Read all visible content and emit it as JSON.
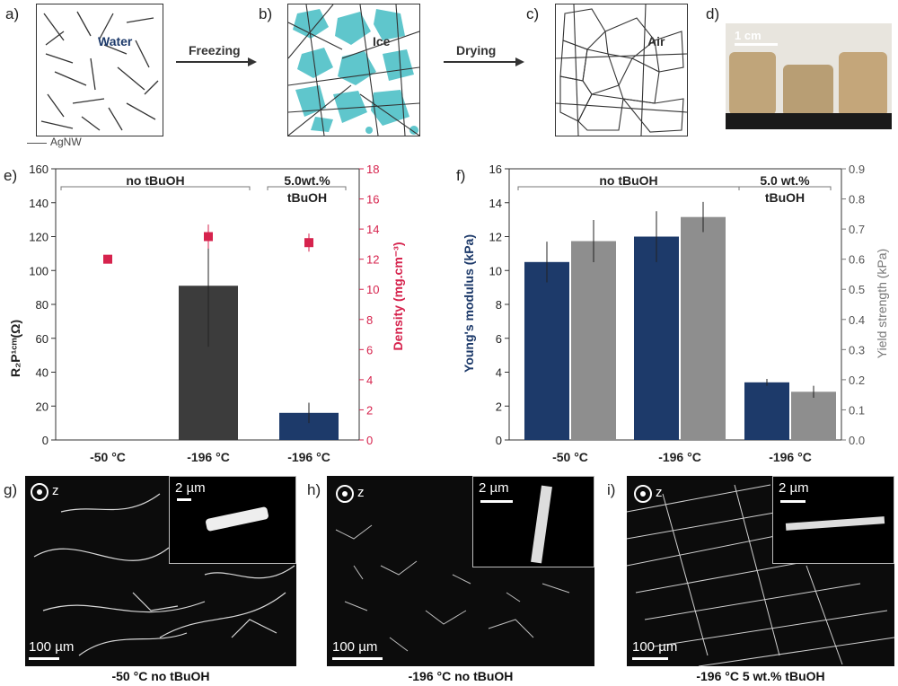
{
  "panel_labels": {
    "a": "a)",
    "b": "b)",
    "c": "c)",
    "d": "d)",
    "e": "e)",
    "f": "f)",
    "g": "g)",
    "h": "h)",
    "i": "i)"
  },
  "schematic": {
    "water": "Water",
    "ice": "Ice",
    "air": "Air",
    "freezing": "Freezing",
    "drying": "Drying",
    "legend": "AgNW"
  },
  "photo": {
    "scale": "1 cm"
  },
  "colors": {
    "navy": "#1d3a6a",
    "gray": "#8e8e8e",
    "dark": "#3c3c3c",
    "red": "#d6234d",
    "teal": "#5fc6cc"
  },
  "chart_e": {
    "group_label_1": "no tBuOH",
    "group_label_2_line1": "5.0wt.%",
    "group_label_2_line2": "tBuOH",
    "ylabel_left": "R₂P¹ᶜᵐ(Ω)",
    "ylabel_right": "Density (mg.cm⁻³)"
  },
  "chart_f": {
    "group_label_1": "no tBuOH",
    "group_label_2_line1": "5.0 wt.%",
    "group_label_2_line2": "tBuOH",
    "ylabel_left": "Young's modulus (kPa)",
    "ylabel_right": "Yield strength (kPa)"
  },
  "chart_data": [
    {
      "type": "bar",
      "categories": [
        "-50 °C",
        "-196 °C",
        "-196 °C"
      ],
      "series": [
        {
          "name": "R2P",
          "values": [
            0,
            91,
            16
          ],
          "errors": [
            0,
            36,
            6
          ],
          "colors": [
            "#3c3c3c",
            "#3c3c3c",
            "#1d3a6a"
          ]
        },
        {
          "name": "Density",
          "type": "scatter",
          "values": [
            12,
            13.5,
            13.1
          ],
          "errors": [
            0.2,
            0.8,
            0.6
          ]
        }
      ],
      "ylim_left": [
        0,
        160
      ],
      "yticks_left": [
        0,
        20,
        40,
        60,
        80,
        100,
        120,
        140,
        160
      ],
      "ylim_right": [
        0,
        18
      ],
      "yticks_right": [
        0,
        2,
        4,
        6,
        8,
        10,
        12,
        14,
        16,
        18
      ]
    },
    {
      "type": "bar",
      "categories": [
        "-50 °C",
        "-196 °C",
        "-196 °C"
      ],
      "series": [
        {
          "name": "Young's modulus",
          "values": [
            10.5,
            12,
            3.4
          ],
          "errors": [
            1.2,
            1.5,
            0.2
          ]
        },
        {
          "name": "Yield strength",
          "values": [
            0.66,
            0.74,
            0.16
          ],
          "errors": [
            0.07,
            0.05,
            0.02
          ]
        }
      ],
      "ylim_left": [
        0,
        16
      ],
      "yticks_left": [
        0,
        2,
        4,
        6,
        8,
        10,
        12,
        14,
        16
      ],
      "ylim_right": [
        0,
        0.9
      ],
      "yticks_right": [
        "0.0",
        "0.1",
        "0.2",
        "0.3",
        "0.4",
        "0.5",
        "0.6",
        "0.7",
        "0.8",
        "0.9"
      ]
    }
  ],
  "micrographs": [
    {
      "scale_main": "100 µm",
      "scale_inset": "2 µm",
      "axis": "z",
      "caption": "-50 °C no tBuOH"
    },
    {
      "scale_main": "100 µm",
      "scale_inset": "2 µm",
      "axis": "z",
      "caption": "-196 °C no tBuOH"
    },
    {
      "scale_main": "100 µm",
      "scale_inset": "2 µm",
      "axis": "z",
      "caption": "-196 °C 5 wt.% tBuOH"
    }
  ]
}
